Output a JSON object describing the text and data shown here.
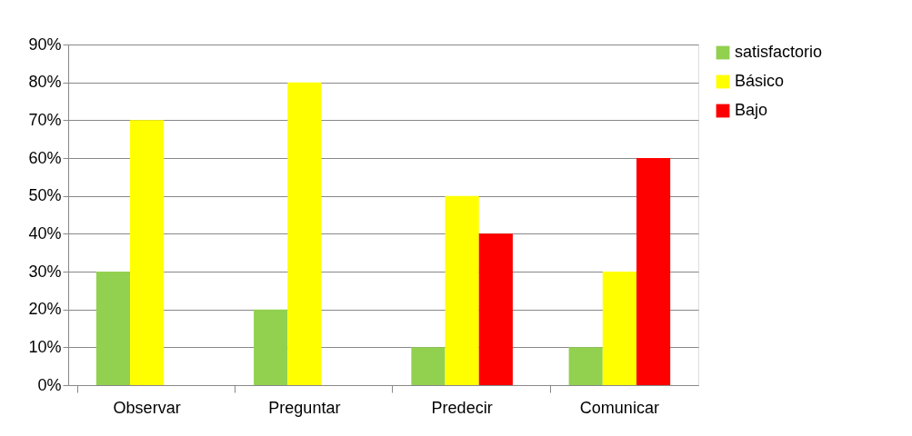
{
  "chart_data": {
    "type": "bar",
    "categories": [
      "Observar",
      "Preguntar",
      "Predecir",
      "Comunicar"
    ],
    "series": [
      {
        "name": "satisfactorio",
        "color": "#92d050",
        "values": [
          30,
          20,
          10,
          10
        ]
      },
      {
        "name": "Básico",
        "color": "#ffff00",
        "values": [
          70,
          80,
          50,
          30
        ]
      },
      {
        "name": "Bajo",
        "color": "#ff0000",
        "values": [
          null,
          null,
          40,
          60
        ]
      }
    ],
    "ylim": [
      0,
      90
    ],
    "yticks": [
      {
        "value": 0,
        "label": "0%"
      },
      {
        "value": 10,
        "label": "10%"
      },
      {
        "value": 20,
        "label": "20%"
      },
      {
        "value": 30,
        "label": "30%"
      },
      {
        "value": 40,
        "label": "40%"
      },
      {
        "value": 50,
        "label": "50%"
      },
      {
        "value": 60,
        "label": "60%"
      },
      {
        "value": 70,
        "label": "70%"
      },
      {
        "value": 80,
        "label": "80%"
      },
      {
        "value": 90,
        "label": "90%"
      }
    ],
    "grid": "y",
    "legend": "right"
  }
}
